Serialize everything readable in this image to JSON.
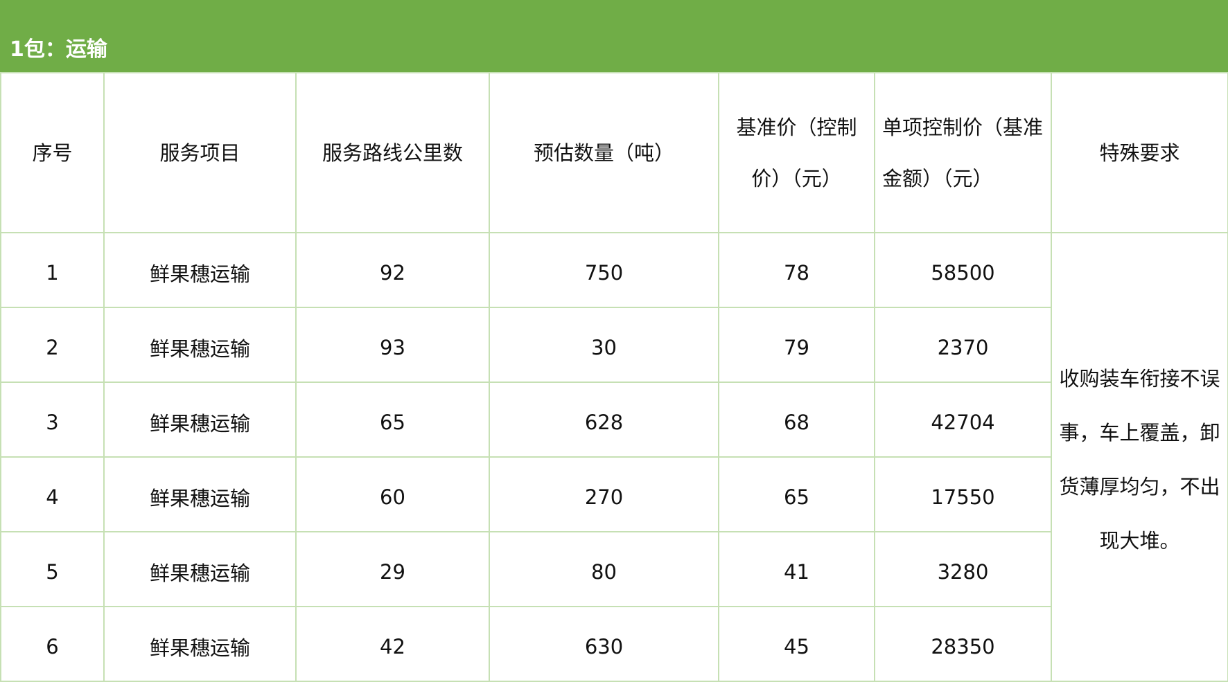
{
  "title": "1包：运输",
  "headers": [
    "序号",
    "服务项目",
    "服务路线公里数",
    "预估数量（吨）",
    "基准价（控制价）（元）",
    "单项控制价（基准金额）（元）",
    "特殊要求"
  ],
  "rows": [
    [
      "1",
      "鲜果穗运输",
      "92",
      "750",
      "78",
      "58500"
    ],
    [
      "2",
      "鲜果穗运输",
      "93",
      "30",
      "79",
      "2370"
    ],
    [
      "3",
      "鲜果穗运输",
      "65",
      "628",
      "68",
      "42704"
    ],
    [
      "4",
      "鲜果穗运输",
      "60",
      "270",
      "65",
      "17550"
    ],
    [
      "5",
      "鲜果穗运输",
      "29",
      "80",
      "41",
      "3280"
    ],
    [
      "6",
      "鲜果穗运输",
      "42",
      "630",
      "45",
      "28350"
    ]
  ],
  "special_requirement": "收购装车衔接不误事，车上覆盖，卸货薄厚均匀，不出现大堆。",
  "colors": {
    "banner": "#70ad47",
    "grid": "#c6e0b4"
  }
}
